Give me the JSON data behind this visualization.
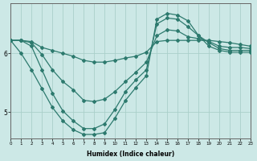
{
  "xlabel": "Humidex (Indice chaleur)",
  "bg_color": "#cce8e6",
  "line_color": "#2d7a6e",
  "grid_color": "#aacfca",
  "xlim": [
    0,
    23
  ],
  "ylim": [
    4.55,
    6.85
  ],
  "xticks": [
    0,
    1,
    2,
    3,
    4,
    5,
    6,
    7,
    8,
    9,
    10,
    11,
    12,
    13,
    14,
    15,
    16,
    17,
    18,
    19,
    20,
    21,
    22,
    23
  ],
  "yticks": [
    5,
    6
  ],
  "lines": [
    {
      "x": [
        0,
        1,
        2,
        3,
        4,
        5,
        6,
        7,
        8,
        9,
        10,
        11,
        12,
        13,
        14,
        15,
        16,
        17,
        18,
        19,
        20,
        21,
        22,
        23
      ],
      "y": [
        6.22,
        6.22,
        6.2,
        6.1,
        6.05,
        6.0,
        5.95,
        5.88,
        5.85,
        5.85,
        5.88,
        5.92,
        5.95,
        6.02,
        6.2,
        6.22,
        6.22,
        6.22,
        6.22,
        6.22,
        6.2,
        6.18,
        6.15,
        6.12
      ]
    },
    {
      "x": [
        0,
        1,
        2,
        3,
        4,
        5,
        6,
        7,
        8,
        9,
        10,
        11,
        12,
        13,
        14,
        15,
        16,
        17,
        18,
        19,
        20,
        21,
        22,
        23
      ],
      "y": [
        6.22,
        6.22,
        6.18,
        5.98,
        5.72,
        5.52,
        5.38,
        5.2,
        5.18,
        5.22,
        5.35,
        5.52,
        5.68,
        5.85,
        6.3,
        6.4,
        6.38,
        6.28,
        6.25,
        6.2,
        6.12,
        6.1,
        6.1,
        6.08
      ]
    },
    {
      "x": [
        0,
        1,
        2,
        3,
        4,
        5,
        6,
        7,
        8,
        9,
        10,
        11,
        12,
        13,
        14,
        15,
        16,
        17,
        18,
        19,
        20,
        21,
        22,
        23
      ],
      "y": [
        6.22,
        6.22,
        6.12,
        5.72,
        5.32,
        5.02,
        4.85,
        4.72,
        4.72,
        4.8,
        5.05,
        5.35,
        5.55,
        5.72,
        6.5,
        6.6,
        6.58,
        6.45,
        6.3,
        6.18,
        6.08,
        6.05,
        6.05,
        6.05
      ]
    },
    {
      "x": [
        0,
        1,
        2,
        3,
        4,
        5,
        6,
        7,
        8,
        9,
        10,
        11,
        12,
        13,
        14,
        15,
        16,
        17,
        18,
        19,
        20,
        21,
        22,
        23
      ],
      "y": [
        6.22,
        6.0,
        5.72,
        5.4,
        5.08,
        4.85,
        4.7,
        4.62,
        4.62,
        4.65,
        4.9,
        5.2,
        5.42,
        5.62,
        6.58,
        6.68,
        6.65,
        6.55,
        6.3,
        6.12,
        6.05,
        6.02,
        6.02,
        6.02
      ]
    }
  ]
}
